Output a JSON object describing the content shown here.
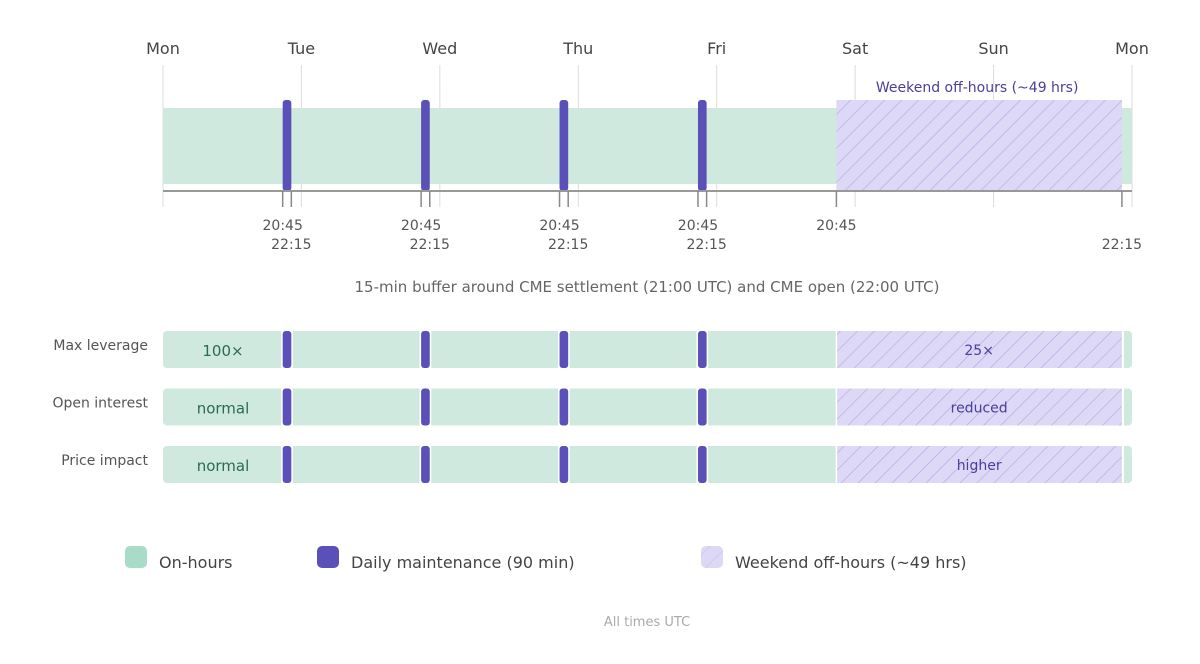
{
  "chart_data": {
    "type": "timeline",
    "days": [
      "Mon",
      "Tue",
      "Wed",
      "Thu",
      "Fri",
      "Sat",
      "Sun",
      "Mon"
    ],
    "maintenance_windows": [
      {
        "day": "Mon",
        "start": "20:45",
        "end": "22:15"
      },
      {
        "day": "Tue",
        "start": "20:45",
        "end": "22:15"
      },
      {
        "day": "Wed",
        "start": "20:45",
        "end": "22:15"
      },
      {
        "day": "Thu",
        "start": "20:45",
        "end": "22:15"
      }
    ],
    "weekend_window": {
      "start_day": "Fri",
      "start": "20:45",
      "end_day": "Sun",
      "end": "22:15",
      "label": "Weekend off-hours (~49 hrs)"
    },
    "tick_labels": [
      {
        "day": "Mon",
        "time": "20:45"
      },
      {
        "day": "Mon",
        "time": "22:15"
      },
      {
        "day": "Tue",
        "time": "20:45"
      },
      {
        "day": "Tue",
        "time": "22:15"
      },
      {
        "day": "Wed",
        "time": "20:45"
      },
      {
        "day": "Wed",
        "time": "22:15"
      },
      {
        "day": "Thu",
        "time": "20:45"
      },
      {
        "day": "Thu",
        "time": "22:15"
      },
      {
        "day": "Fri",
        "time": "20:45"
      },
      {
        "day": "Sun",
        "time": "22:15"
      }
    ],
    "caption": "15-min buffer around CME settlement (21:00 UTC) and CME open (22:00 UTC)",
    "rows": [
      {
        "label": "Max leverage",
        "on_value": "100×",
        "weekend_value": "25×"
      },
      {
        "label": "Open interest",
        "on_value": "normal",
        "weekend_value": "reduced"
      },
      {
        "label": "Price impact",
        "on_value": "normal",
        "weekend_value": "higher"
      }
    ],
    "legend": [
      {
        "key": "on",
        "label": "On-hours"
      },
      {
        "key": "maint",
        "label": "Daily maintenance (90 min)"
      },
      {
        "key": "weekend",
        "label": "Weekend off-hours (~49 hrs)"
      }
    ],
    "footnote": "All times UTC"
  },
  "colors": {
    "on_hours": "#cfe9df",
    "on_hours_legend": "#a8dcc9",
    "maintenance": "#5b50b8",
    "weekend": "#dcd8f5",
    "weekend_hatch": "#b3abe2",
    "weekend_text": "#4a3f9a",
    "on_text": "#2a6b52"
  }
}
